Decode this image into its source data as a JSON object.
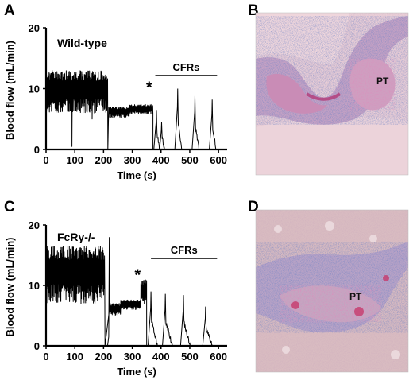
{
  "panels": {
    "A": {
      "letter": "A"
    },
    "B": {
      "letter": "B",
      "structure_label": "PT"
    },
    "C": {
      "letter": "C"
    },
    "D": {
      "letter": "D",
      "structure_label": "PT"
    }
  },
  "chart_data": [
    {
      "panel": "A",
      "type": "line",
      "series_label": "Wild-type",
      "xlabel": "Time (s)",
      "ylabel": "Blood flow (mL/min)",
      "xlim": [
        0,
        630
      ],
      "ylim": [
        0,
        20
      ],
      "xticks": [
        0,
        100,
        200,
        300,
        400,
        500,
        600
      ],
      "yticks": [
        0,
        10,
        20
      ],
      "annotation_star": "*",
      "annotation_star_time": 375,
      "bracket_label": "CFRs",
      "bracket_range": [
        380,
        595
      ],
      "segments": [
        {
          "t_start": 0,
          "t_end": 215,
          "low": 6.0,
          "high": 13.0,
          "dips": [
            {
              "t": 90,
              "v": 0.5
            },
            {
              "t": 160,
              "v": 5.0
            }
          ]
        },
        {
          "t_start": 218,
          "t_end": 290,
          "low": 5.2,
          "high": 7.0
        },
        {
          "t_start": 290,
          "t_end": 372,
          "low": 5.8,
          "high": 7.4
        }
      ],
      "cycles": [
        {
          "t_start": 375,
          "t_peak": 384,
          "t_end": 395,
          "peak": 6.5
        },
        {
          "t_start": 395,
          "t_peak": 402,
          "t_end": 412,
          "peak": 4.5
        },
        {
          "t_start": 448,
          "t_peak": 458,
          "t_end": 472,
          "peak": 10.0
        },
        {
          "t_start": 508,
          "t_peak": 518,
          "t_end": 532,
          "peak": 8.8
        },
        {
          "t_start": 568,
          "t_peak": 578,
          "t_end": 592,
          "peak": 8.2
        }
      ],
      "drops": [
        {
          "t": 215,
          "from": 11.0,
          "to": 0.0
        },
        {
          "t": 372,
          "from": 6.5,
          "to": 0.0
        }
      ]
    },
    {
      "panel": "C",
      "type": "line",
      "series_label": "FcRγ-/-",
      "xlabel": "Time (s)",
      "ylabel": "Blood flow (mL/min)",
      "xlim": [
        0,
        630
      ],
      "ylim": [
        0,
        20
      ],
      "xticks": [
        0,
        100,
        200,
        300,
        400,
        500,
        600
      ],
      "yticks": [
        0,
        10,
        20
      ],
      "annotation_star": "*",
      "annotation_star_time": 335,
      "bracket_label": "CFRs",
      "bracket_range": [
        365,
        595
      ],
      "segments": [
        {
          "t_start": 0,
          "t_end": 205,
          "low": 7.0,
          "high": 16.5
        },
        {
          "t_start": 222,
          "t_end": 260,
          "low": 5.0,
          "high": 7.0
        },
        {
          "t_start": 260,
          "t_end": 330,
          "low": 6.0,
          "high": 7.6
        },
        {
          "t_start": 330,
          "t_end": 350,
          "low": 7.0,
          "high": 11.0
        }
      ],
      "cycles": [
        {
          "t_start": 355,
          "t_peak": 365,
          "t_end": 388,
          "peak": 9.0
        },
        {
          "t_start": 405,
          "t_peak": 415,
          "t_end": 440,
          "peak": 8.6
        },
        {
          "t_start": 468,
          "t_peak": 478,
          "t_end": 502,
          "peak": 8.4
        },
        {
          "t_start": 545,
          "t_peak": 555,
          "t_end": 578,
          "peak": 6.5
        }
      ],
      "drops": [
        {
          "t": 205,
          "from": 12.0,
          "to": 0.0
        },
        {
          "t": 350,
          "from": 10.0,
          "to": 0.0
        }
      ],
      "spikes": [
        {
          "t": 220,
          "from": 1.5,
          "to": 18.0
        }
      ]
    }
  ],
  "colors": {
    "ink": "#000000",
    "micrograph_background_B": "#e9c9d2",
    "micrograph_background_D": "#d8b8bd",
    "stain_blue": "#3a4f9e",
    "stain_pink": "#c65b8f"
  }
}
